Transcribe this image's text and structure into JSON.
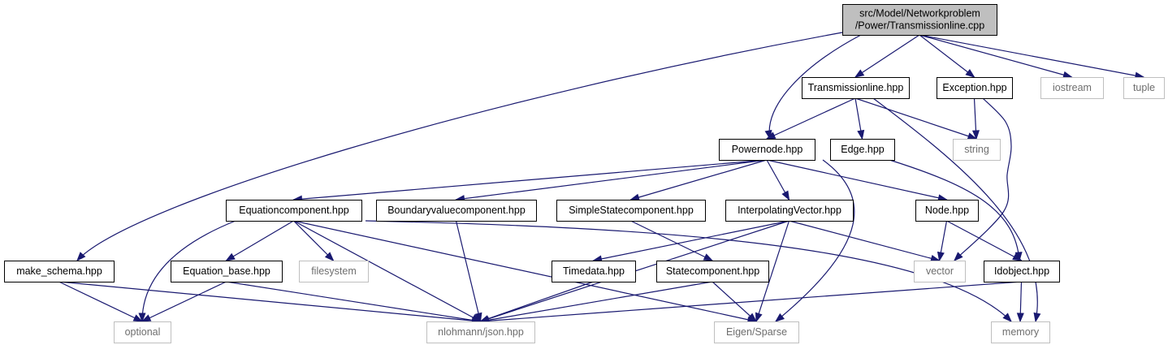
{
  "colors": {
    "root_fill": "#bfbfbf",
    "node_fill": "#ffffff",
    "node_border": "#000000",
    "external_border": "#bfbfbf",
    "external_text": "#6e6e6e",
    "edge": "#191970"
  },
  "nodes": [
    {
      "id": "root",
      "lines": [
        "src/Model/Networkproblem",
        "/Power/Transmissionline.cpp"
      ],
      "kind": "root"
    },
    {
      "id": "transmissionline_hpp",
      "lines": [
        "Transmissionline.hpp"
      ],
      "kind": "file"
    },
    {
      "id": "exception_hpp",
      "lines": [
        "Exception.hpp"
      ],
      "kind": "file"
    },
    {
      "id": "iostream",
      "lines": [
        "iostream"
      ],
      "kind": "external"
    },
    {
      "id": "tuple",
      "lines": [
        "tuple"
      ],
      "kind": "external"
    },
    {
      "id": "powernode_hpp",
      "lines": [
        "Powernode.hpp"
      ],
      "kind": "file"
    },
    {
      "id": "edge_hpp",
      "lines": [
        "Edge.hpp"
      ],
      "kind": "file"
    },
    {
      "id": "string",
      "lines": [
        "string"
      ],
      "kind": "external"
    },
    {
      "id": "equationcomponent_hpp",
      "lines": [
        "Equationcomponent.hpp"
      ],
      "kind": "file"
    },
    {
      "id": "boundaryvaluecomponent_hpp",
      "lines": [
        "Boundaryvaluecomponent.hpp"
      ],
      "kind": "file"
    },
    {
      "id": "simplestatecomponent_hpp",
      "lines": [
        "SimpleStatecomponent.hpp"
      ],
      "kind": "file"
    },
    {
      "id": "interpolatingvector_hpp",
      "lines": [
        "InterpolatingVector.hpp"
      ],
      "kind": "file"
    },
    {
      "id": "node_hpp",
      "lines": [
        "Node.hpp"
      ],
      "kind": "file"
    },
    {
      "id": "make_schema_hpp",
      "lines": [
        "make_schema.hpp"
      ],
      "kind": "file"
    },
    {
      "id": "equation_base_hpp",
      "lines": [
        "Equation_base.hpp"
      ],
      "kind": "file"
    },
    {
      "id": "filesystem",
      "lines": [
        "filesystem"
      ],
      "kind": "external"
    },
    {
      "id": "timedata_hpp",
      "lines": [
        "Timedata.hpp"
      ],
      "kind": "file"
    },
    {
      "id": "statecomponent_hpp",
      "lines": [
        "Statecomponent.hpp"
      ],
      "kind": "file"
    },
    {
      "id": "vector",
      "lines": [
        "vector"
      ],
      "kind": "external"
    },
    {
      "id": "idobject_hpp",
      "lines": [
        "Idobject.hpp"
      ],
      "kind": "file"
    },
    {
      "id": "optional",
      "lines": [
        "optional"
      ],
      "kind": "external"
    },
    {
      "id": "nlohmann_json_hpp",
      "lines": [
        "nlohmann/json.hpp"
      ],
      "kind": "external"
    },
    {
      "id": "eigen_sparse",
      "lines": [
        "Eigen/Sparse"
      ],
      "kind": "external"
    },
    {
      "id": "memory",
      "lines": [
        "memory"
      ],
      "kind": "external"
    }
  ],
  "edges": [
    {
      "from": "root",
      "to": "transmissionline_hpp"
    },
    {
      "from": "root",
      "to": "exception_hpp"
    },
    {
      "from": "root",
      "to": "iostream"
    },
    {
      "from": "root",
      "to": "tuple"
    },
    {
      "from": "root",
      "to": "powernode_hpp"
    },
    {
      "from": "root",
      "to": "make_schema_hpp"
    },
    {
      "from": "transmissionline_hpp",
      "to": "powernode_hpp"
    },
    {
      "from": "transmissionline_hpp",
      "to": "edge_hpp"
    },
    {
      "from": "transmissionline_hpp",
      "to": "string"
    },
    {
      "from": "transmissionline_hpp",
      "to": "memory"
    },
    {
      "from": "exception_hpp",
      "to": "string"
    },
    {
      "from": "exception_hpp",
      "to": "vector"
    },
    {
      "from": "edge_hpp",
      "to": "idobject_hpp"
    },
    {
      "from": "powernode_hpp",
      "to": "equationcomponent_hpp"
    },
    {
      "from": "powernode_hpp",
      "to": "boundaryvaluecomponent_hpp"
    },
    {
      "from": "powernode_hpp",
      "to": "simplestatecomponent_hpp"
    },
    {
      "from": "powernode_hpp",
      "to": "interpolatingvector_hpp"
    },
    {
      "from": "powernode_hpp",
      "to": "node_hpp"
    },
    {
      "from": "powernode_hpp",
      "to": "eigen_sparse"
    },
    {
      "from": "equationcomponent_hpp",
      "to": "optional"
    },
    {
      "from": "equationcomponent_hpp",
      "to": "equation_base_hpp"
    },
    {
      "from": "equationcomponent_hpp",
      "to": "filesystem"
    },
    {
      "from": "equationcomponent_hpp",
      "to": "nlohmann_json_hpp"
    },
    {
      "from": "equationcomponent_hpp",
      "to": "eigen_sparse"
    },
    {
      "from": "equationcomponent_hpp",
      "to": "memory"
    },
    {
      "from": "boundaryvaluecomponent_hpp",
      "to": "nlohmann_json_hpp"
    },
    {
      "from": "simplestatecomponent_hpp",
      "to": "statecomponent_hpp"
    },
    {
      "from": "interpolatingvector_hpp",
      "to": "timedata_hpp"
    },
    {
      "from": "interpolatingvector_hpp",
      "to": "nlohmann_json_hpp"
    },
    {
      "from": "interpolatingvector_hpp",
      "to": "vector"
    },
    {
      "from": "interpolatingvector_hpp",
      "to": "eigen_sparse"
    },
    {
      "from": "node_hpp",
      "to": "vector"
    },
    {
      "from": "node_hpp",
      "to": "idobject_hpp"
    },
    {
      "from": "make_schema_hpp",
      "to": "optional"
    },
    {
      "from": "make_schema_hpp",
      "to": "nlohmann_json_hpp"
    },
    {
      "from": "equation_base_hpp",
      "to": "optional"
    },
    {
      "from": "equation_base_hpp",
      "to": "nlohmann_json_hpp"
    },
    {
      "from": "timedata_hpp",
      "to": "nlohmann_json_hpp"
    },
    {
      "from": "statecomponent_hpp",
      "to": "nlohmann_json_hpp"
    },
    {
      "from": "statecomponent_hpp",
      "to": "eigen_sparse"
    },
    {
      "from": "idobject_hpp",
      "to": "nlohmann_json_hpp"
    },
    {
      "from": "idobject_hpp",
      "to": "memory"
    }
  ]
}
